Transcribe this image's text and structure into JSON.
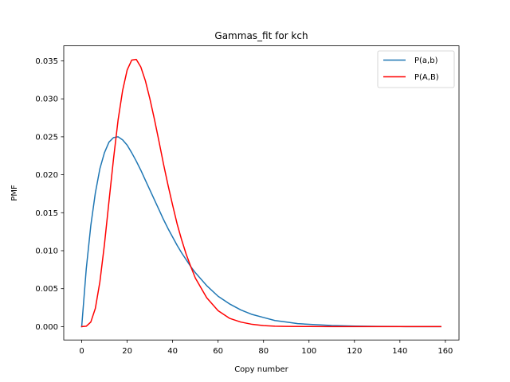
{
  "chart_data": {
    "type": "line",
    "title": "Gammas_fit for kch",
    "xlabel": "Copy number",
    "ylabel": "PMF",
    "xlim": [
      -7.9,
      166
    ],
    "ylim": [
      -0.00176,
      0.03698
    ],
    "xticks": [
      0,
      20,
      40,
      60,
      80,
      100,
      120,
      140,
      160
    ],
    "yticks": [
      0.0,
      0.005,
      0.01,
      0.015,
      0.02,
      0.025,
      0.03,
      0.035
    ],
    "ytick_labels": [
      "0.000",
      "0.005",
      "0.010",
      "0.015",
      "0.020",
      "0.025",
      "0.030",
      "0.035"
    ],
    "grid": false,
    "legend_position": "top-right",
    "series": [
      {
        "name": "P(a,b)",
        "color": "#1f77b4",
        "x": [
          0,
          2,
          4,
          6,
          8,
          10,
          12,
          14,
          16,
          18,
          20,
          22,
          24,
          26,
          28,
          30,
          32,
          34,
          36,
          38,
          40,
          42,
          44,
          46,
          48,
          50,
          55,
          60,
          65,
          70,
          75,
          80,
          85,
          90,
          95,
          100,
          110,
          120,
          130,
          140,
          150,
          158
        ],
        "y": [
          0.0,
          0.0076,
          0.0133,
          0.0176,
          0.0208,
          0.0229,
          0.0243,
          0.0249,
          0.025,
          0.0246,
          0.0239,
          0.0229,
          0.0218,
          0.0206,
          0.0193,
          0.018,
          0.0167,
          0.0154,
          0.0141,
          0.0129,
          0.0118,
          0.0107,
          0.0097,
          0.0088,
          0.0079,
          0.0071,
          0.0054,
          0.004,
          0.003,
          0.0022,
          0.0016,
          0.0012,
          0.0008,
          0.0006,
          0.0004,
          0.0003,
          0.00015,
          7e-05,
          3e-05,
          1e-05,
          0.0,
          0.0
        ]
      },
      {
        "name": "P(A,B)",
        "color": "#ff0000",
        "x": [
          0,
          2,
          4,
          6,
          8,
          10,
          12,
          14,
          16,
          18,
          20,
          22,
          24,
          26,
          28,
          30,
          32,
          34,
          36,
          38,
          40,
          42,
          44,
          46,
          48,
          50,
          55,
          60,
          65,
          70,
          75,
          80,
          85,
          90,
          100,
          110,
          120,
          130,
          140,
          150,
          158
        ],
        "y": [
          0.0,
          5e-05,
          0.0006,
          0.0024,
          0.0059,
          0.0108,
          0.0165,
          0.0221,
          0.0272,
          0.0311,
          0.0338,
          0.0351,
          0.0352,
          0.0342,
          0.0324,
          0.03,
          0.0273,
          0.0244,
          0.0214,
          0.0186,
          0.016,
          0.0135,
          0.0114,
          0.0095,
          0.0079,
          0.0064,
          0.0038,
          0.0021,
          0.0011,
          0.0006,
          0.0003,
          0.00013,
          6e-05,
          3e-05,
          1e-05,
          0.0,
          0.0,
          0.0,
          0.0,
          0.0,
          0.0
        ]
      }
    ]
  }
}
